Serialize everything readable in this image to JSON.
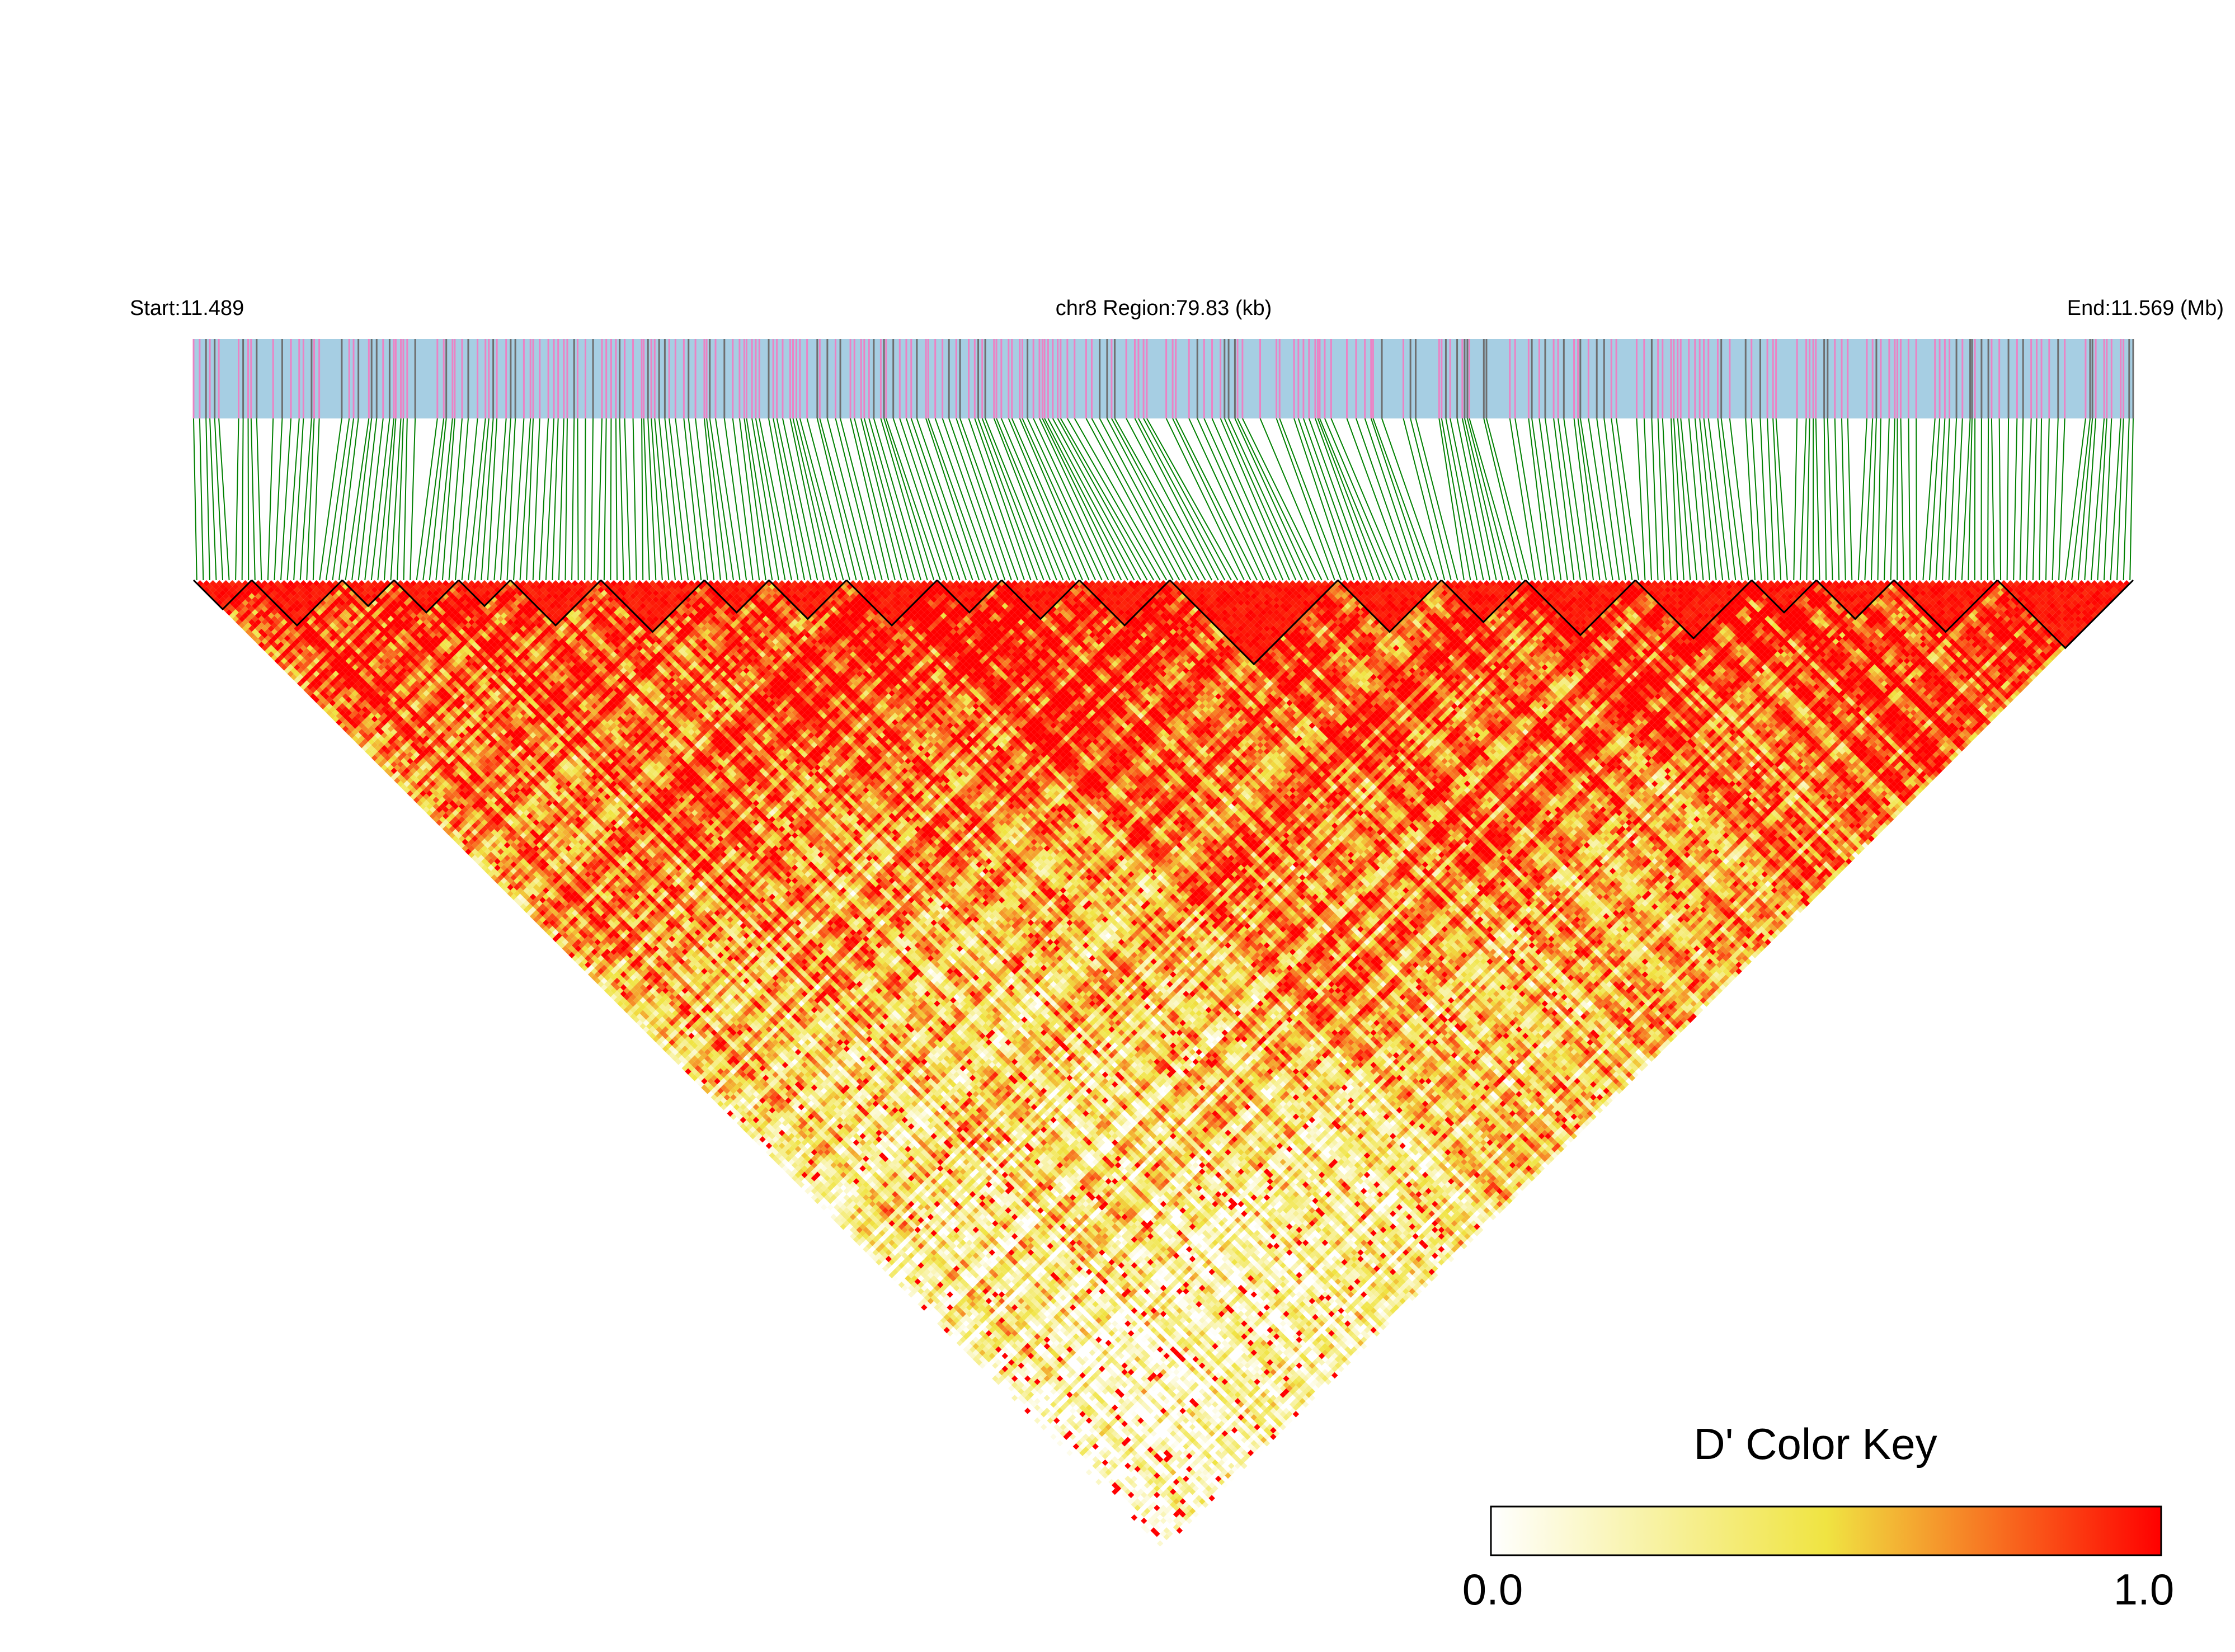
{
  "chart_data": {
    "type": "heatmap",
    "subtype": "linkage-disequilibrium-triangle",
    "start_label": "Start:11.489",
    "region_label": "chr8 Region:79.83 (kb)",
    "end_label": "End:11.569 (Mb)",
    "chromosome": "chr8",
    "start_mb": 11.489,
    "end_mb": 11.569,
    "region_kb": 79.83,
    "n_snps": 300,
    "metric": "D'",
    "color_key": {
      "title": "D' Color Key",
      "min_label": "0.0",
      "max_label": "1.0",
      "range": [
        0,
        1
      ],
      "colors": [
        "#ffffff",
        "#f0e442",
        "#ff0000"
      ]
    },
    "track_colors": {
      "background": "#a6cee3",
      "snp_major": "#ec82c4",
      "snp_minor": "#6e6e6e",
      "connector": "#008000",
      "block_outline": "#000000"
    },
    "ld_blocks_snp_ranges": [
      [
        0,
        8
      ],
      [
        9,
        22
      ],
      [
        23,
        30
      ],
      [
        31,
        40
      ],
      [
        41,
        48
      ],
      [
        49,
        62
      ],
      [
        63,
        78
      ],
      [
        79,
        88
      ],
      [
        89,
        100
      ],
      [
        101,
        114
      ],
      [
        115,
        124
      ],
      [
        125,
        136
      ],
      [
        137,
        150
      ],
      [
        151,
        176
      ],
      [
        177,
        192
      ],
      [
        193,
        205
      ],
      [
        206,
        222
      ],
      [
        223,
        240
      ],
      [
        241,
        250
      ],
      [
        251,
        262
      ],
      [
        263,
        278
      ],
      [
        279,
        299
      ]
    ]
  }
}
